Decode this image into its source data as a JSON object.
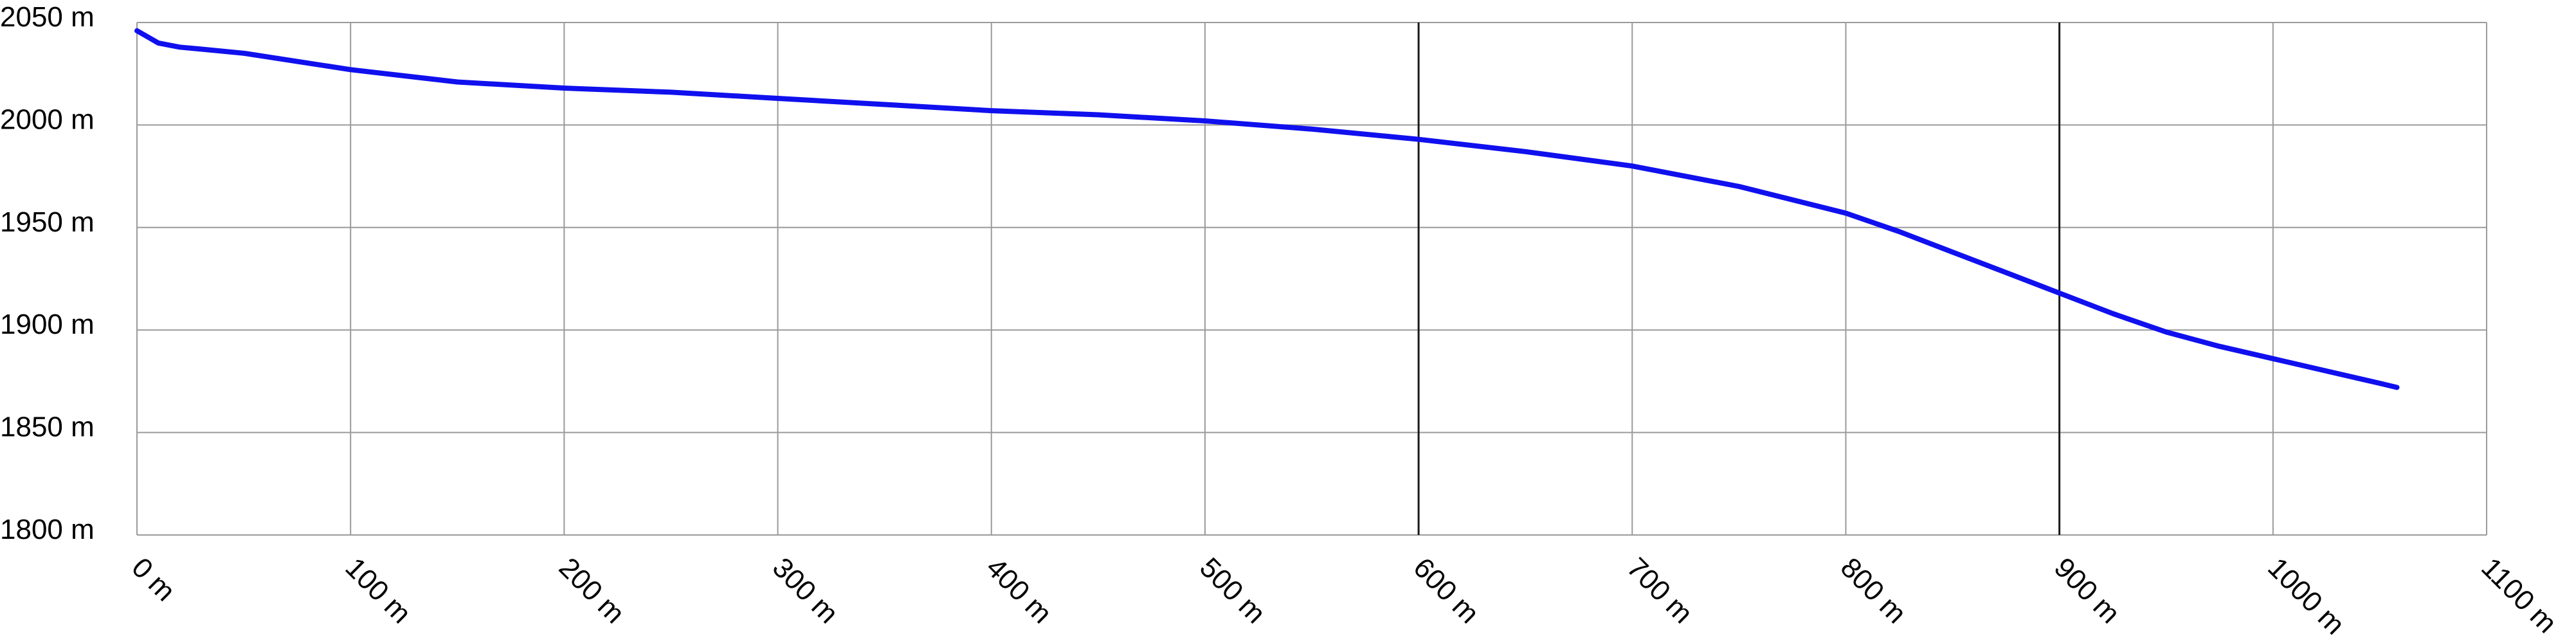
{
  "chart_data": {
    "type": "line",
    "title": "",
    "xlabel": "",
    "ylabel": "",
    "xlim": [
      0,
      1100
    ],
    "ylim": [
      1800,
      2050
    ],
    "x_ticks": [
      0,
      100,
      200,
      300,
      400,
      500,
      600,
      700,
      800,
      900,
      1000,
      1100
    ],
    "x_tick_labels": [
      "0 m",
      "100 m",
      "200 m",
      "300 m",
      "400 m",
      "500 m",
      "600 m",
      "700 m",
      "800 m",
      "900 m",
      "1000 m",
      "1100 m"
    ],
    "y_ticks": [
      1800,
      1850,
      1900,
      1950,
      2000,
      2050
    ],
    "y_tick_labels": [
      "1800 m",
      "1850 m",
      "1900 m",
      "1950 m",
      "2000 m",
      "2050 m"
    ],
    "grid": true,
    "emphasized_gridlines_x": [
      600,
      900
    ],
    "series": [
      {
        "color": "#1010ee",
        "x": [
          0,
          5,
          10,
          20,
          30,
          50,
          100,
          150,
          200,
          250,
          300,
          350,
          400,
          450,
          500,
          550,
          600,
          650,
          700,
          750,
          800,
          825,
          850,
          875,
          900,
          925,
          950,
          975,
          1000,
          1025,
          1050,
          1058
        ],
        "values": [
          2046,
          2043,
          2040,
          2038,
          2037,
          2035,
          2027,
          2021,
          2018,
          2016,
          2013,
          2010,
          2007,
          2005,
          2002,
          1998,
          1993,
          1987,
          1980,
          1970,
          1957,
          1948,
          1938,
          1928,
          1918,
          1908,
          1899,
          1892,
          1886,
          1880,
          1874,
          1872
        ]
      }
    ]
  }
}
